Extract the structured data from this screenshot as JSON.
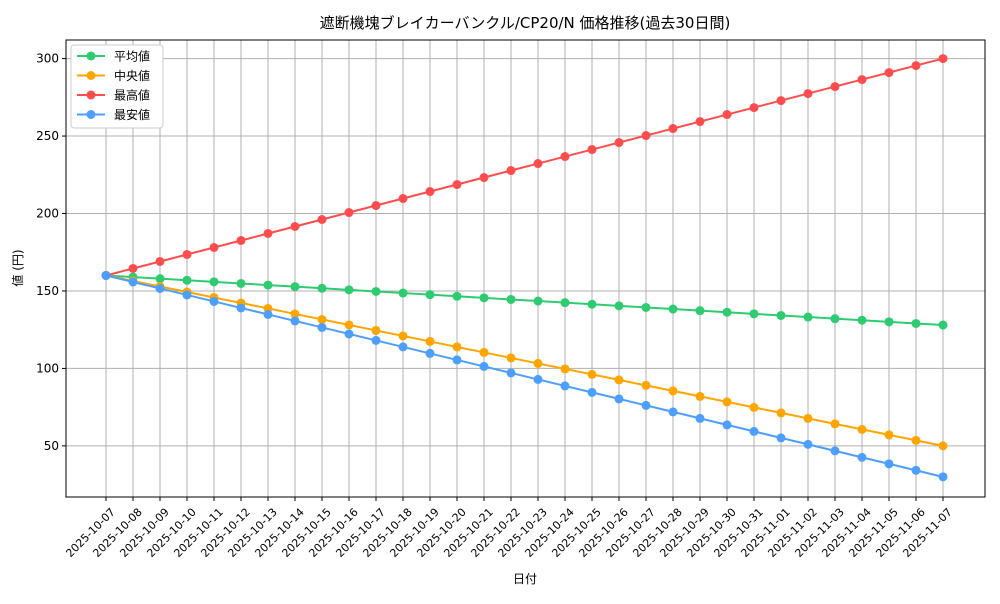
{
  "chart_data": {
    "type": "line",
    "title": "遮断機塊ブレイカーバンクル/CP20/N 価格推移(過去30日間)",
    "xlabel": "日付",
    "ylabel": "値 (円)",
    "ylim": [
      17,
      312
    ],
    "yticks": [
      50,
      100,
      150,
      200,
      250,
      300
    ],
    "grid": true,
    "legend_position": "top-left",
    "x": [
      "2025-10-07",
      "2025-10-08",
      "2025-10-09",
      "2025-10-10",
      "2025-10-11",
      "2025-10-12",
      "2025-10-13",
      "2025-10-14",
      "2025-10-15",
      "2025-10-16",
      "2025-10-17",
      "2025-10-18",
      "2025-10-19",
      "2025-10-20",
      "2025-10-21",
      "2025-10-22",
      "2025-10-23",
      "2025-10-24",
      "2025-10-25",
      "2025-10-26",
      "2025-10-27",
      "2025-10-28",
      "2025-10-29",
      "2025-10-30",
      "2025-10-31",
      "2025-11-01",
      "2025-11-02",
      "2025-11-03",
      "2025-11-04",
      "2025-11-05",
      "2025-11-06",
      "2025-11-07"
    ],
    "series": [
      {
        "name": "平均値",
        "color": "#2ecc71",
        "start": 160,
        "end": 128
      },
      {
        "name": "中央値",
        "color": "#ffa500",
        "start": 160,
        "end": 50
      },
      {
        "name": "最高値",
        "color": "#ff4d4d",
        "start": 160,
        "end": 300
      },
      {
        "name": "最安値",
        "color": "#4d9fff",
        "start": 160,
        "end": 30
      }
    ]
  }
}
